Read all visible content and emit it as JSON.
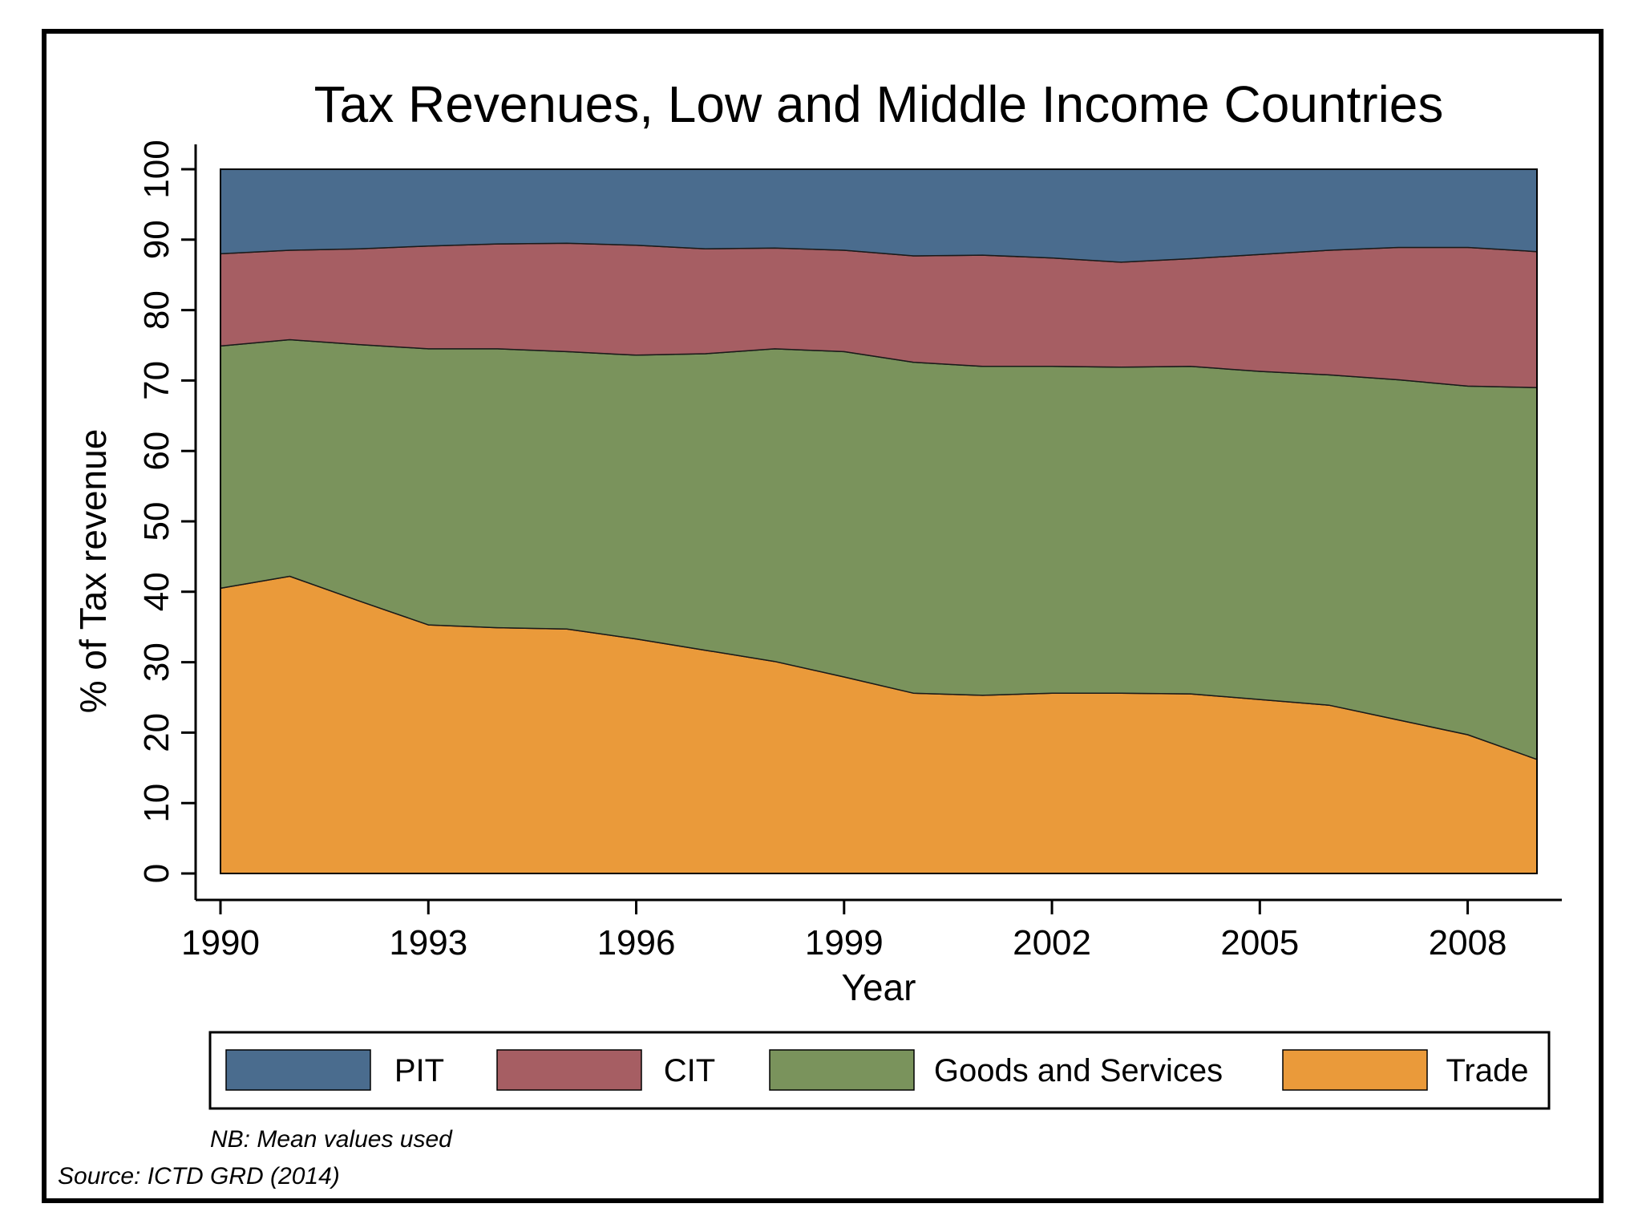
{
  "chart_data": {
    "type": "area",
    "stacked": true,
    "title": "Tax Revenues, Low and Middle Income Countries",
    "xlabel": "Year",
    "ylabel": "% of Tax revenue",
    "xlim": [
      1990,
      2009
    ],
    "ylim": [
      0,
      100
    ],
    "xticks": [
      "1990",
      "1993",
      "1996",
      "1999",
      "2002",
      "2005",
      "2008"
    ],
    "yticks": [
      "0",
      "10",
      "20",
      "30",
      "40",
      "50",
      "60",
      "70",
      "80",
      "90",
      "100"
    ],
    "legend_position": "bottom",
    "x": [
      1990,
      1991,
      1992,
      1993,
      1994,
      1995,
      1996,
      1997,
      1998,
      1999,
      2000,
      2001,
      2002,
      2003,
      2004,
      2005,
      2006,
      2007,
      2008,
      2009
    ],
    "series": [
      {
        "name": "Trade",
        "color": "#ea9a3a",
        "values": [
          40.5,
          42.2,
          38.7,
          35.3,
          34.9,
          34.7,
          33.3,
          31.7,
          30.1,
          27.9,
          25.6,
          25.3,
          25.6,
          25.6,
          25.5,
          24.7,
          23.9,
          21.8,
          19.7,
          16.2
        ]
      },
      {
        "name": "Goods and Services",
        "color": "#7a935c",
        "values": [
          34.4,
          33.6,
          36.4,
          39.2,
          39.6,
          39.4,
          40.3,
          42.1,
          44.4,
          46.2,
          47.0,
          46.7,
          46.4,
          46.3,
          46.5,
          46.6,
          46.9,
          48.3,
          49.5,
          52.8
        ]
      },
      {
        "name": "CIT",
        "color": "#a65e63",
        "values": [
          13.1,
          12.7,
          13.6,
          14.6,
          14.9,
          15.4,
          15.6,
          14.9,
          14.3,
          14.4,
          15.1,
          15.8,
          15.4,
          14.9,
          15.3,
          16.6,
          17.7,
          18.8,
          19.7,
          19.3
        ]
      },
      {
        "name": "PIT",
        "color": "#4a6c8e",
        "values": [
          12.0,
          11.5,
          11.3,
          10.9,
          10.6,
          10.5,
          10.8,
          11.3,
          11.2,
          11.5,
          12.3,
          12.2,
          12.6,
          13.2,
          12.7,
          12.1,
          11.5,
          11.1,
          11.1,
          11.7
        ]
      }
    ],
    "legend_order": [
      "PIT",
      "CIT",
      "Goods and Services",
      "Trade"
    ],
    "notes": {
      "nb": "NB: Mean values used",
      "source": "Source: ICTD GRD (2014)"
    }
  }
}
